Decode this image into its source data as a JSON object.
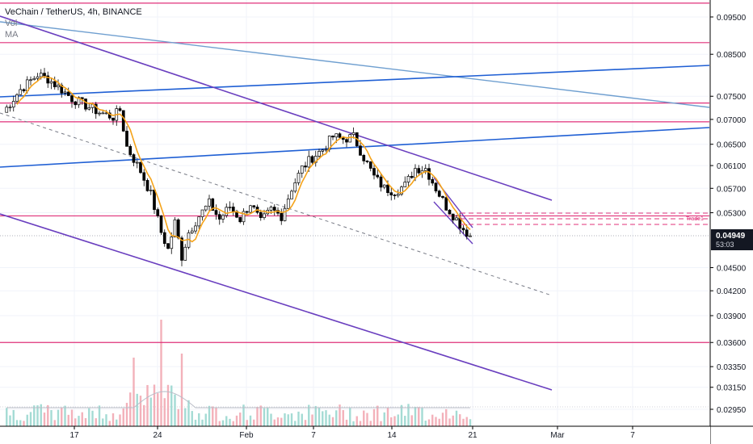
{
  "legend": {
    "symbol": "VeChain / TetherUS, 4h, BINANCE",
    "vol": "Vol",
    "ma": "MA"
  },
  "colors": {
    "up_candle": "#ffffff",
    "down_candle": "#000000",
    "candle_border": "#000000",
    "ma_line": "#f5a31a",
    "horizontal_levels": "#e0317a",
    "channel_lines": "#6a3fbf",
    "blue_trendlines": "#1f5fd4",
    "light_trendline": "#6f9fd0",
    "volume_bars": "#9ad7cf",
    "current_price_bg": "#131722"
  },
  "chart_data": {
    "type": "candlestick",
    "title": "VeChain / TetherUS, 4h, BINANCE",
    "price_axis": {
      "scale": "log",
      "ticks": [
        "0.09500",
        "0.08500",
        "0.07500",
        "0.07000",
        "0.06500",
        "0.06100",
        "0.05700",
        "0.05300",
        "0.04500",
        "0.04200",
        "0.03900",
        "0.03600",
        "0.03350",
        "0.03150",
        "0.02950"
      ]
    },
    "time_axis": {
      "ticks": [
        "17",
        "24",
        "Feb",
        "7",
        "14",
        "21",
        "Mar",
        "7"
      ]
    },
    "current_price": {
      "value": "0.04949",
      "countdown": "53:03"
    },
    "indicators": [
      "Vol",
      "MA"
    ],
    "price_path": [
      [
        0,
        0.0715
      ],
      [
        5,
        0.0765
      ],
      [
        10,
        0.08
      ],
      [
        13,
        0.079
      ],
      [
        17,
        0.0765
      ],
      [
        20,
        0.0745
      ],
      [
        24,
        0.073
      ],
      [
        28,
        0.0715
      ],
      [
        32,
        0.0705
      ],
      [
        34,
        0.072
      ],
      [
        36,
        0.0645
      ],
      [
        40,
        0.06
      ],
      [
        43,
        0.056
      ],
      [
        46,
        0.05
      ],
      [
        48,
        0.0475
      ],
      [
        50,
        0.0515
      ],
      [
        52,
        0.0465
      ],
      [
        54,
        0.05
      ],
      [
        57,
        0.0525
      ],
      [
        60,
        0.0545
      ],
      [
        63,
        0.052
      ],
      [
        66,
        0.054
      ],
      [
        69,
        0.052
      ],
      [
        72,
        0.0545
      ],
      [
        75,
        0.0515
      ],
      [
        78,
        0.0535
      ],
      [
        81,
        0.0525
      ],
      [
        84,
        0.057
      ],
      [
        87,
        0.0605
      ],
      [
        90,
        0.0625
      ],
      [
        93,
        0.064
      ],
      [
        96,
        0.0665
      ],
      [
        99,
        0.066
      ],
      [
        102,
        0.0665
      ],
      [
        105,
        0.0625
      ],
      [
        108,
        0.059
      ],
      [
        111,
        0.057
      ],
      [
        114,
        0.0565
      ],
      [
        117,
        0.0575
      ],
      [
        120,
        0.0605
      ],
      [
        123,
        0.0605
      ],
      [
        126,
        0.057
      ],
      [
        129,
        0.054
      ],
      [
        132,
        0.052
      ],
      [
        134,
        0.0505
      ],
      [
        136,
        0.0495
      ]
    ],
    "horizontal_levels": [
      "0.0990",
      "0.0880",
      "0.0735",
      "0.0695",
      "0.0525",
      "0.0360"
    ],
    "trade_box_label": "Trade1"
  }
}
